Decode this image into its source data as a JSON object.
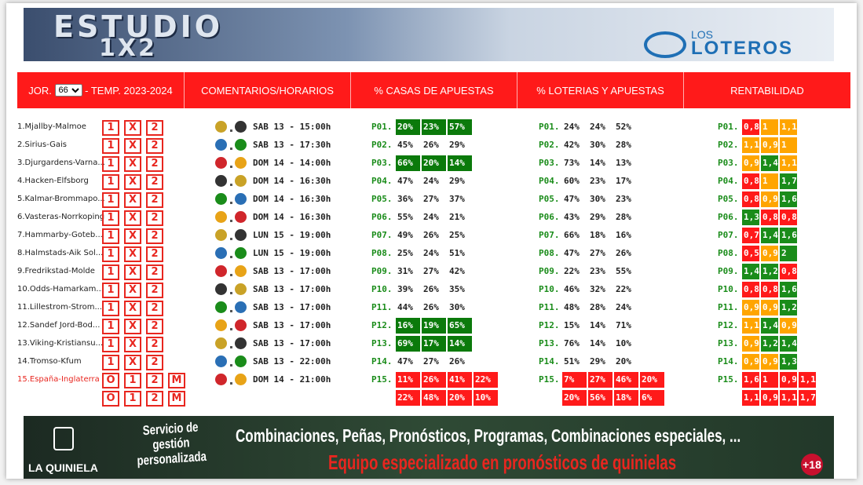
{
  "header": {
    "logo_top": "ESTUDIO",
    "logo_bottom": "1X2",
    "brand_top": "LOS",
    "brand_bottom": "LOTEROS"
  },
  "tabs": {
    "jornada_label": "JOR.",
    "jornada": "66",
    "season": "- TEMP. 2023-2024",
    "comments": "COMENTARIOS/HORARIOS",
    "casas": "% CASAS DE APUESTAS",
    "loterias": "% LOTERIAS Y APUESTAS",
    "rentabilidad": "RENTABILIDAD"
  },
  "rows": [
    {
      "match": "1.Mjallby-Malmoe",
      "signs": [
        [
          "1",
          "X",
          "2"
        ]
      ],
      "schedule": "SAB 13 - 15:00h",
      "casas": {
        "label": "P01.",
        "values": [
          [
            "20%",
            "23%",
            "57%"
          ]
        ],
        "highlight": "#0b7a0b"
      },
      "loterias": {
        "label": "P01.",
        "values": [
          [
            "24%",
            "24%",
            "52%"
          ]
        ]
      },
      "rentabilidad": {
        "label": "P01.",
        "values": [
          [
            "0,8",
            "1",
            "1,1"
          ]
        ],
        "colors": [
          [
            "#ff1a1a",
            "#ffa500",
            "#ffa500"
          ]
        ]
      }
    },
    {
      "match": "2.Sirius-Gais",
      "signs": [
        [
          "1",
          "X",
          "2"
        ]
      ],
      "schedule": "SAB 13 - 17:30h",
      "casas": {
        "label": "P02.",
        "values": [
          [
            "45%",
            "26%",
            "29%"
          ]
        ]
      },
      "loterias": {
        "label": "P02.",
        "values": [
          [
            "42%",
            "30%",
            "28%"
          ]
        ]
      },
      "rentabilidad": {
        "label": "P02.",
        "values": [
          [
            "1,1",
            "0,9",
            "1"
          ]
        ],
        "colors": [
          [
            "#ffa500",
            "#ffa500",
            "#ffa500"
          ]
        ]
      }
    },
    {
      "match": "3.Djurgardens-Varna...",
      "signs": [
        [
          "1",
          "X",
          "2"
        ]
      ],
      "schedule": "DOM 14 - 14:00h",
      "casas": {
        "label": "P03.",
        "values": [
          [
            "66%",
            "20%",
            "14%"
          ]
        ],
        "highlight": "#0b7a0b"
      },
      "loterias": {
        "label": "P03.",
        "values": [
          [
            "73%",
            "14%",
            "13%"
          ]
        ]
      },
      "rentabilidad": {
        "label": "P03.",
        "values": [
          [
            "0,9",
            "1,4",
            "1,1"
          ]
        ],
        "colors": [
          [
            "#ffa500",
            "#1a8c1a",
            "#ffa500"
          ]
        ]
      }
    },
    {
      "match": "4.Hacken-Elfsborg",
      "signs": [
        [
          "1",
          "X",
          "2"
        ]
      ],
      "schedule": "DOM 14 - 16:30h",
      "casas": {
        "label": "P04.",
        "values": [
          [
            "47%",
            "24%",
            "29%"
          ]
        ]
      },
      "loterias": {
        "label": "P04.",
        "values": [
          [
            "60%",
            "23%",
            "17%"
          ]
        ]
      },
      "rentabilidad": {
        "label": "P04.",
        "values": [
          [
            "0,8",
            "1",
            "1,7"
          ]
        ],
        "colors": [
          [
            "#ff1a1a",
            "#ffa500",
            "#1a8c1a"
          ]
        ]
      }
    },
    {
      "match": "5.Kalmar-Brommapo...",
      "signs": [
        [
          "1",
          "X",
          "2"
        ]
      ],
      "schedule": "DOM 14 - 16:30h",
      "casas": {
        "label": "P05.",
        "values": [
          [
            "36%",
            "27%",
            "37%"
          ]
        ]
      },
      "loterias": {
        "label": "P05.",
        "values": [
          [
            "47%",
            "30%",
            "23%"
          ]
        ]
      },
      "rentabilidad": {
        "label": "P05.",
        "values": [
          [
            "0,8",
            "0,9",
            "1,6"
          ]
        ],
        "colors": [
          [
            "#ff1a1a",
            "#ffa500",
            "#1a8c1a"
          ]
        ]
      }
    },
    {
      "match": "6.Vasteras-Norrkoping",
      "signs": [
        [
          "1",
          "X",
          "2"
        ]
      ],
      "schedule": "DOM 14 - 16:30h",
      "casas": {
        "label": "P06.",
        "values": [
          [
            "55%",
            "24%",
            "21%"
          ]
        ]
      },
      "loterias": {
        "label": "P06.",
        "values": [
          [
            "43%",
            "29%",
            "28%"
          ]
        ]
      },
      "rentabilidad": {
        "label": "P06.",
        "values": [
          [
            "1,3",
            "0,8",
            "0,8"
          ]
        ],
        "colors": [
          [
            "#1a8c1a",
            "#ff1a1a",
            "#ff1a1a"
          ]
        ]
      }
    },
    {
      "match": "7.Hammarby-Goteb...",
      "signs": [
        [
          "1",
          "X",
          "2"
        ]
      ],
      "schedule": "LUN 15 - 19:00h",
      "casas": {
        "label": "P07.",
        "values": [
          [
            "49%",
            "26%",
            "25%"
          ]
        ]
      },
      "loterias": {
        "label": "P07.",
        "values": [
          [
            "66%",
            "18%",
            "16%"
          ]
        ]
      },
      "rentabilidad": {
        "label": "P07.",
        "values": [
          [
            "0,7",
            "1,4",
            "1,6"
          ]
        ],
        "colors": [
          [
            "#ff1a1a",
            "#1a8c1a",
            "#1a8c1a"
          ]
        ]
      }
    },
    {
      "match": "8.Halmstads-Aik Sol...",
      "signs": [
        [
          "1",
          "X",
          "2"
        ]
      ],
      "schedule": "LUN 15 - 19:00h",
      "casas": {
        "label": "P08.",
        "values": [
          [
            "25%",
            "24%",
            "51%"
          ]
        ]
      },
      "loterias": {
        "label": "P08.",
        "values": [
          [
            "47%",
            "27%",
            "26%"
          ]
        ]
      },
      "rentabilidad": {
        "label": "P08.",
        "values": [
          [
            "0,5",
            "0,9",
            "2"
          ]
        ],
        "colors": [
          [
            "#ff1a1a",
            "#ffa500",
            "#1a8c1a"
          ]
        ]
      }
    },
    {
      "match": "9.Fredrikstad-Molde",
      "signs": [
        [
          "1",
          "X",
          "2"
        ]
      ],
      "schedule": "SAB 13 - 17:00h",
      "casas": {
        "label": "P09.",
        "values": [
          [
            "31%",
            "27%",
            "42%"
          ]
        ]
      },
      "loterias": {
        "label": "P09.",
        "values": [
          [
            "22%",
            "23%",
            "55%"
          ]
        ]
      },
      "rentabilidad": {
        "label": "P09.",
        "values": [
          [
            "1,4",
            "1,2",
            "0,8"
          ]
        ],
        "colors": [
          [
            "#1a8c1a",
            "#1a8c1a",
            "#ff1a1a"
          ]
        ]
      }
    },
    {
      "match": "10.Odds-Hamarkam...",
      "signs": [
        [
          "1",
          "X",
          "2"
        ]
      ],
      "schedule": "SAB 13 - 17:00h",
      "casas": {
        "label": "P10.",
        "values": [
          [
            "39%",
            "26%",
            "35%"
          ]
        ]
      },
      "loterias": {
        "label": "P10.",
        "values": [
          [
            "46%",
            "32%",
            "22%"
          ]
        ]
      },
      "rentabilidad": {
        "label": "P10.",
        "values": [
          [
            "0,8",
            "0,8",
            "1,6"
          ]
        ],
        "colors": [
          [
            "#ff1a1a",
            "#ff1a1a",
            "#1a8c1a"
          ]
        ]
      }
    },
    {
      "match": "11.Lillestrom-Strom...",
      "signs": [
        [
          "1",
          "X",
          "2"
        ]
      ],
      "schedule": "SAB 13 - 17:00h",
      "casas": {
        "label": "P11.",
        "values": [
          [
            "44%",
            "26%",
            "30%"
          ]
        ]
      },
      "loterias": {
        "label": "P11.",
        "values": [
          [
            "48%",
            "28%",
            "24%"
          ]
        ]
      },
      "rentabilidad": {
        "label": "P11.",
        "values": [
          [
            "0,9",
            "0,9",
            "1,2"
          ]
        ],
        "colors": [
          [
            "#ffa500",
            "#ffa500",
            "#1a8c1a"
          ]
        ]
      }
    },
    {
      "match": "12.Sandef Jord-Bod...",
      "signs": [
        [
          "1",
          "X",
          "2"
        ]
      ],
      "schedule": "SAB 13 - 17:00h",
      "casas": {
        "label": "P12.",
        "values": [
          [
            "16%",
            "19%",
            "65%"
          ]
        ],
        "highlight": "#0b7a0b"
      },
      "loterias": {
        "label": "P12.",
        "values": [
          [
            "15%",
            "14%",
            "71%"
          ]
        ]
      },
      "rentabilidad": {
        "label": "P12.",
        "values": [
          [
            "1,1",
            "1,4",
            "0,9"
          ]
        ],
        "colors": [
          [
            "#ffa500",
            "#1a8c1a",
            "#ffa500"
          ]
        ]
      }
    },
    {
      "match": "13.Viking-Kristiansu...",
      "signs": [
        [
          "1",
          "X",
          "2"
        ]
      ],
      "schedule": "SAB 13 - 17:00h",
      "casas": {
        "label": "P13.",
        "values": [
          [
            "69%",
            "17%",
            "14%"
          ]
        ],
        "highlight": "#0b7a0b"
      },
      "loterias": {
        "label": "P13.",
        "values": [
          [
            "76%",
            "14%",
            "10%"
          ]
        ]
      },
      "rentabilidad": {
        "label": "P13.",
        "values": [
          [
            "0,9",
            "1,2",
            "1,4"
          ]
        ],
        "colors": [
          [
            "#ffa500",
            "#1a8c1a",
            "#1a8c1a"
          ]
        ]
      }
    },
    {
      "match": "14.Tromso-Kfum",
      "signs": [
        [
          "1",
          "X",
          "2"
        ]
      ],
      "schedule": "SAB 13 - 22:00h",
      "casas": {
        "label": "P14.",
        "values": [
          [
            "47%",
            "27%",
            "26%"
          ]
        ]
      },
      "loterias": {
        "label": "P14.",
        "values": [
          [
            "51%",
            "29%",
            "20%"
          ]
        ]
      },
      "rentabilidad": {
        "label": "P14.",
        "values": [
          [
            "0,9",
            "0,9",
            "1,3"
          ]
        ],
        "colors": [
          [
            "#ffa500",
            "#ffa500",
            "#1a8c1a"
          ]
        ]
      }
    },
    {
      "match": "15.España-Inglaterra",
      "match_color": "#e8261f",
      "signs": [
        [
          "O",
          "1",
          "2",
          "M"
        ],
        [
          "O",
          "1",
          "2",
          "M"
        ]
      ],
      "schedule": "DOM 14 - 21:00h",
      "casas": {
        "label": "P15.",
        "values": [
          [
            "11%",
            "26%",
            "41%",
            "22%"
          ],
          [
            "22%",
            "48%",
            "20%",
            "10%"
          ]
        ],
        "highlight": "#ff1a1a"
      },
      "loterias": {
        "label": "P15.",
        "values": [
          [
            "7%",
            "27%",
            "46%",
            "20%"
          ],
          [
            "20%",
            "56%",
            "18%",
            "6%"
          ]
        ],
        "highlight": "#ff1a1a"
      },
      "rentabilidad": {
        "label": "P15.",
        "values": [
          [
            "1,6",
            "1",
            "0,9",
            "1,1"
          ],
          [
            "1,1",
            "0,9",
            "1,1",
            "1,7"
          ]
        ],
        "colors": [
          [
            "#ff1a1a",
            "#ff1a1a",
            "#ff1a1a",
            "#ff1a1a"
          ],
          [
            "#ff1a1a",
            "#ff1a1a",
            "#ff1a1a",
            "#ff1a1a"
          ]
        ]
      }
    }
  ],
  "footer": {
    "brand": "LA QUINIELA",
    "service": "Servicio de gestión personalizada",
    "headline": "Combinaciones, Peñas, Pronósticos, Programas, Combinaciones especiales, ...",
    "tagline": "Equipo especializado en pronósticos de quinielas",
    "age": "+18"
  }
}
